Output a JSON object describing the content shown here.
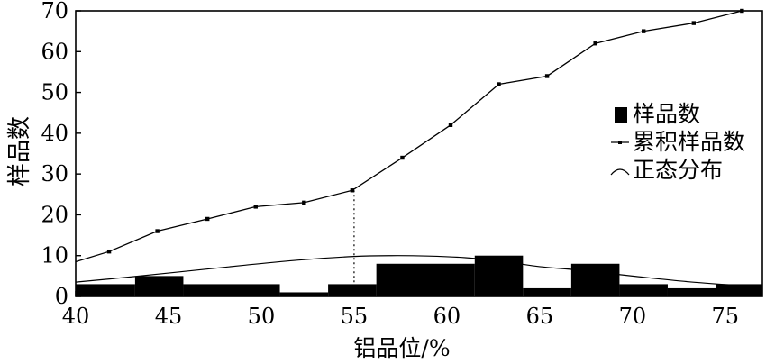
{
  "chart_data": {
    "type": "bar",
    "xlabel": "铝品位/%",
    "ylabel": "样品数",
    "xlim": [
      40,
      77
    ],
    "ylim": [
      0,
      70
    ],
    "xticks": [
      40,
      45,
      50,
      55,
      60,
      65,
      70,
      75
    ],
    "yticks": [
      0,
      10,
      20,
      30,
      40,
      50,
      60,
      70
    ],
    "legend": {
      "position": "right",
      "items": [
        {
          "label": "样品数",
          "marker": "filled-square"
        },
        {
          "label": "累积样品数",
          "marker": "line-with-square"
        },
        {
          "label": "正态分布",
          "marker": "curve"
        }
      ]
    },
    "series": [
      {
        "name": "样品数",
        "type": "bar",
        "bins": [
          {
            "x0": 40.0,
            "x1": 43.2,
            "value": 3
          },
          {
            "x0": 43.2,
            "x1": 45.8,
            "value": 5
          },
          {
            "x0": 45.8,
            "x1": 51.0,
            "value": 3
          },
          {
            "x0": 51.0,
            "x1": 53.6,
            "value": 1
          },
          {
            "x0": 53.6,
            "x1": 56.2,
            "value": 3
          },
          {
            "x0": 56.2,
            "x1": 61.5,
            "value": 8
          },
          {
            "x0": 61.5,
            "x1": 64.1,
            "value": 10
          },
          {
            "x0": 64.1,
            "x1": 66.7,
            "value": 2
          },
          {
            "x0": 66.7,
            "x1": 69.3,
            "value": 8
          },
          {
            "x0": 69.3,
            "x1": 71.9,
            "value": 3
          },
          {
            "x0": 71.9,
            "x1": 74.5,
            "value": 2
          },
          {
            "x0": 74.5,
            "x1": 77.0,
            "value": 3
          }
        ]
      },
      {
        "name": "累积样品数",
        "type": "line",
        "x": [
          40,
          41.8,
          44.4,
          47.1,
          49.7,
          52.3,
          54.9,
          57.6,
          60.2,
          62.8,
          65.4,
          68.0,
          70.6,
          73.3,
          75.9
        ],
        "y": [
          8.5,
          11,
          16,
          19,
          22,
          23,
          26,
          34,
          42,
          52,
          54,
          62,
          65,
          67,
          70
        ]
      },
      {
        "name": "正态分布",
        "type": "curve",
        "x": [
          40,
          43,
          46,
          49,
          52,
          55,
          57,
          59,
          61,
          63,
          65,
          67,
          70,
          73,
          76,
          77
        ],
        "y": [
          3.5,
          4.8,
          6.2,
          7.6,
          8.9,
          9.8,
          10.0,
          9.9,
          9.5,
          8.6,
          7.3,
          6.5,
          5.0,
          3.6,
          2.6,
          2.3
        ]
      }
    ],
    "annotations": [
      {
        "type": "dotted-vertical-line",
        "x": 55,
        "y_from": 0,
        "y_to": 26
      }
    ],
    "grid": false
  }
}
